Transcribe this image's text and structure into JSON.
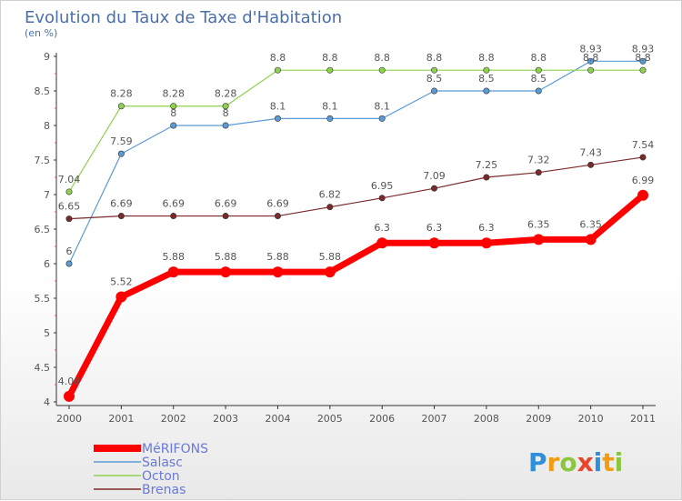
{
  "chart_data": {
    "type": "line",
    "title": "Evolution du Taux de Taxe d'Habitation",
    "subtitle": "(en %)",
    "x": [
      "2000",
      "2001",
      "2002",
      "2003",
      "2004",
      "2005",
      "2006",
      "2007",
      "2008",
      "2009",
      "2010",
      "2011"
    ],
    "ylim": [
      4,
      9
    ],
    "yticks": [
      "4",
      "4.5",
      "5",
      "5.5",
      "6",
      "6.5",
      "7",
      "7.5",
      "8",
      "8.5",
      "9"
    ],
    "grid": false,
    "legend_position": "bottom-left",
    "series": [
      {
        "name": "MéRIFONS",
        "color": "#ff0000",
        "values": [
          4.08,
          5.52,
          5.88,
          5.88,
          5.88,
          5.88,
          6.3,
          6.3,
          6.3,
          6.35,
          6.35,
          6.99
        ],
        "labels": [
          "4.08",
          "5.52",
          "5.88",
          "5.88",
          "5.88",
          "5.88",
          "6.3",
          "6.3",
          "6.3",
          "6.35",
          "6.35",
          "6.99"
        ]
      },
      {
        "name": "Salasc",
        "color": "#5b9bd5",
        "values": [
          6,
          7.59,
          8,
          8,
          8.1,
          8.1,
          8.1,
          8.5,
          8.5,
          8.5,
          8.93,
          8.93
        ],
        "labels": [
          "6",
          "7.59",
          "8",
          "8",
          "8.1",
          "8.1",
          "8.1",
          "8.5",
          "8.5",
          "8.5",
          "8.93",
          "8.93"
        ]
      },
      {
        "name": "Octon",
        "color": "#8fd14f",
        "values": [
          7.04,
          8.28,
          8.28,
          8.28,
          8.8,
          8.8,
          8.8,
          8.8,
          8.8,
          8.8,
          8.8,
          8.8
        ],
        "labels": [
          "7.04",
          "8.28",
          "8.28",
          "8.28",
          "8.8",
          "8.8",
          "8.8",
          "8.8",
          "8.8",
          "8.8",
          "8.8",
          "8.8"
        ]
      },
      {
        "name": "Brenas",
        "color": "#7a2a2a",
        "values": [
          6.65,
          6.69,
          6.69,
          6.69,
          6.69,
          6.82,
          6.95,
          7.09,
          7.25,
          7.32,
          7.43,
          7.54
        ],
        "labels": [
          "6.65",
          "6.69",
          "6.69",
          "6.69",
          "6.69",
          "6.82",
          "6.95",
          "7.09",
          "7.25",
          "7.32",
          "7.43",
          "7.54"
        ]
      }
    ]
  },
  "brand": {
    "letters": [
      "P",
      "r",
      "o",
      "x",
      "i",
      "t",
      "i"
    ],
    "colors": [
      "#2f8fd8",
      "#f39c12",
      "#8cc63f",
      "#e8452c",
      "#2f8fd8",
      "#f39c12",
      "#8cc63f"
    ]
  }
}
